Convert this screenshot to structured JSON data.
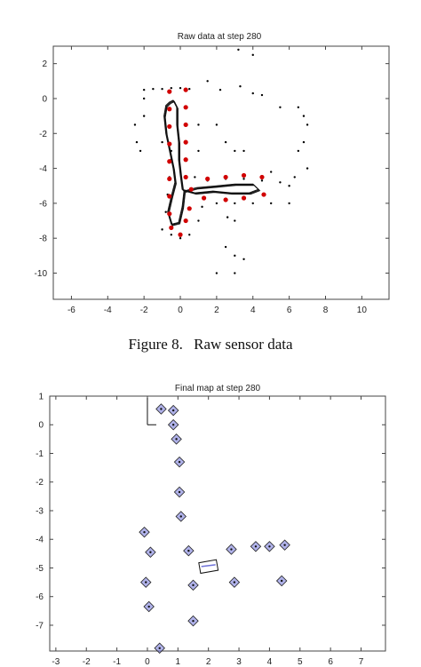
{
  "caption": {
    "label": "Figure 8.",
    "text": "Raw sensor data"
  },
  "chart_data": [
    {
      "type": "scatter",
      "title": "Raw data at step 280",
      "xlabel": "",
      "ylabel": "",
      "xlim": [
        -7,
        11.5
      ],
      "ylim": [
        -11.5,
        3
      ],
      "xticks": [
        -6,
        -4,
        -2,
        0,
        2,
        4,
        6,
        8,
        10
      ],
      "yticks": [
        2,
        0,
        -2,
        -4,
        -6,
        -8,
        -10
      ],
      "grid": false,
      "series": [
        {
          "color": "#000000",
          "points": [
            [
              -2.0,
              0.5
            ],
            [
              -1.5,
              0.55
            ],
            [
              -1.0,
              0.55
            ],
            [
              -0.5,
              0.6
            ],
            [
              0.0,
              0.6
            ],
            [
              0.5,
              0.55
            ],
            [
              -2.0,
              0.0
            ],
            [
              -2.0,
              -1.0
            ],
            [
              -2.5,
              -1.5
            ],
            [
              -2.4,
              -2.5
            ],
            [
              -2.2,
              -3.0
            ],
            [
              -1.0,
              -2.5
            ],
            [
              -0.5,
              -3.0
            ],
            [
              1.0,
              -1.5
            ],
            [
              1.0,
              -3.0
            ],
            [
              0.8,
              -4.5
            ],
            [
              1.5,
              -4.7
            ],
            [
              2.5,
              -4.6
            ],
            [
              3.5,
              -4.6
            ],
            [
              4.5,
              -4.7
            ],
            [
              5.5,
              -4.8
            ],
            [
              6.0,
              -5.0
            ],
            [
              6.0,
              -6.0
            ],
            [
              5.0,
              -6.0
            ],
            [
              4.0,
              -6.0
            ],
            [
              3.0,
              -6.0
            ],
            [
              2.0,
              -6.0
            ],
            [
              1.2,
              -6.2
            ],
            [
              1.0,
              -7.0
            ],
            [
              0.5,
              -7.8
            ],
            [
              0.0,
              -8.0
            ],
            [
              -0.5,
              -7.8
            ],
            [
              -1.0,
              -7.5
            ],
            [
              -0.8,
              -6.5
            ],
            [
              -0.7,
              -5.5
            ],
            [
              -0.6,
              -4.5
            ],
            [
              -0.5,
              -3.5
            ],
            [
              1.5,
              1.0
            ],
            [
              2.2,
              0.5
            ],
            [
              3.3,
              0.7
            ],
            [
              4.0,
              0.3
            ],
            [
              4.5,
              0.2
            ],
            [
              5.5,
              -0.5
            ],
            [
              6.5,
              -0.5
            ],
            [
              7.0,
              -1.5
            ],
            [
              6.8,
              -2.5
            ],
            [
              6.5,
              -3.0
            ],
            [
              7.0,
              -4.0
            ],
            [
              6.3,
              -4.5
            ],
            [
              3.2,
              2.8
            ],
            [
              4.0,
              2.5
            ],
            [
              3.0,
              -7.0
            ],
            [
              2.5,
              -8.5
            ],
            [
              3.0,
              -9.0
            ],
            [
              3.5,
              -9.2
            ],
            [
              2.0,
              -10.0
            ],
            [
              3.0,
              -10.0
            ],
            [
              2.6,
              -6.8
            ],
            [
              2.0,
              -1.5
            ],
            [
              2.5,
              -2.5
            ],
            [
              3.0,
              -3.0
            ],
            [
              3.5,
              -3.0
            ],
            [
              6.8,
              -1.0
            ],
            [
              5.0,
              -4.2
            ]
          ]
        },
        {
          "color": "#d10000",
          "points": [
            [
              0.3,
              0.5
            ],
            [
              0.3,
              -0.5
            ],
            [
              0.3,
              -1.5
            ],
            [
              0.3,
              -2.5
            ],
            [
              0.3,
              -3.5
            ],
            [
              0.3,
              -4.5
            ],
            [
              0.6,
              -5.2
            ],
            [
              1.5,
              -4.6
            ],
            [
              2.5,
              -4.5
            ],
            [
              3.5,
              -4.4
            ],
            [
              4.5,
              -4.5
            ],
            [
              4.6,
              -5.5
            ],
            [
              3.5,
              -5.7
            ],
            [
              2.5,
              -5.8
            ],
            [
              1.3,
              -5.7
            ],
            [
              0.5,
              -6.3
            ],
            [
              0.3,
              -7.0
            ],
            [
              0.0,
              -7.8
            ],
            [
              -0.5,
              -7.4
            ],
            [
              -0.6,
              -6.6
            ],
            [
              -0.6,
              -5.6
            ],
            [
              -0.6,
              -4.6
            ],
            [
              -0.6,
              -3.6
            ],
            [
              -0.6,
              -2.6
            ],
            [
              -0.6,
              -1.6
            ],
            [
              -0.6,
              -0.6
            ],
            [
              -0.6,
              0.4
            ]
          ]
        }
      ],
      "trajectory": [
        [
          -0.6,
          -0.2
        ],
        [
          -0.8,
          -0.4
        ],
        [
          -0.9,
          -1.0
        ],
        [
          -0.8,
          -2.0
        ],
        [
          -0.6,
          -3.0
        ],
        [
          -0.4,
          -4.0
        ],
        [
          -0.3,
          -4.8
        ],
        [
          -0.5,
          -5.6
        ],
        [
          -0.7,
          -6.5
        ],
        [
          -0.5,
          -7.2
        ],
        [
          -0.1,
          -7.1
        ],
        [
          0.1,
          -6.2
        ],
        [
          0.2,
          -5.3
        ],
        [
          0.9,
          -5.1
        ],
        [
          2.0,
          -5.0
        ],
        [
          3.0,
          -4.9
        ],
        [
          4.0,
          -4.9
        ],
        [
          4.3,
          -5.2
        ],
        [
          3.8,
          -5.4
        ],
        [
          2.8,
          -5.4
        ],
        [
          1.8,
          -5.3
        ],
        [
          0.8,
          -5.4
        ],
        [
          0.1,
          -5.2
        ],
        [
          0.0,
          -4.4
        ],
        [
          -0.1,
          -3.5
        ],
        [
          -0.1,
          -2.5
        ],
        [
          -0.2,
          -1.5
        ],
        [
          -0.2,
          -0.5
        ],
        [
          -0.4,
          -0.1
        ],
        [
          -0.6,
          -0.2
        ]
      ]
    },
    {
      "type": "scatter",
      "title": "Final map at step 280",
      "xlabel": "",
      "ylabel": "",
      "xlim": [
        -3.2,
        7.8
      ],
      "ylim": [
        -7.9,
        1.0
      ],
      "xticks": [
        -3,
        -2,
        -1,
        0,
        1,
        2,
        3,
        4,
        5,
        6,
        7
      ],
      "yticks": [
        1,
        0,
        -1,
        -2,
        -3,
        -4,
        -5,
        -6,
        -7
      ],
      "grid": false,
      "landmark_color": "#6f72d8",
      "landmarks": [
        [
          0.45,
          0.55
        ],
        [
          0.85,
          0.5
        ],
        [
          0.85,
          0.0
        ],
        [
          0.95,
          -0.5
        ],
        [
          1.05,
          -1.3
        ],
        [
          1.05,
          -2.35
        ],
        [
          1.1,
          -3.2
        ],
        [
          -0.1,
          -3.75
        ],
        [
          0.1,
          -4.45
        ],
        [
          1.35,
          -4.4
        ],
        [
          -0.05,
          -5.5
        ],
        [
          0.05,
          -6.35
        ],
        [
          1.5,
          -5.6
        ],
        [
          1.5,
          -6.85
        ],
        [
          2.75,
          -4.35
        ],
        [
          2.85,
          -5.5
        ],
        [
          3.55,
          -4.25
        ],
        [
          4.0,
          -4.25
        ],
        [
          4.5,
          -4.2
        ],
        [
          4.4,
          -5.45
        ],
        [
          0.4,
          -7.8
        ]
      ],
      "robot": {
        "x": 2.0,
        "y": -4.95
      },
      "origin_marker": {
        "x": 0.0,
        "y": 0.0
      }
    }
  ]
}
